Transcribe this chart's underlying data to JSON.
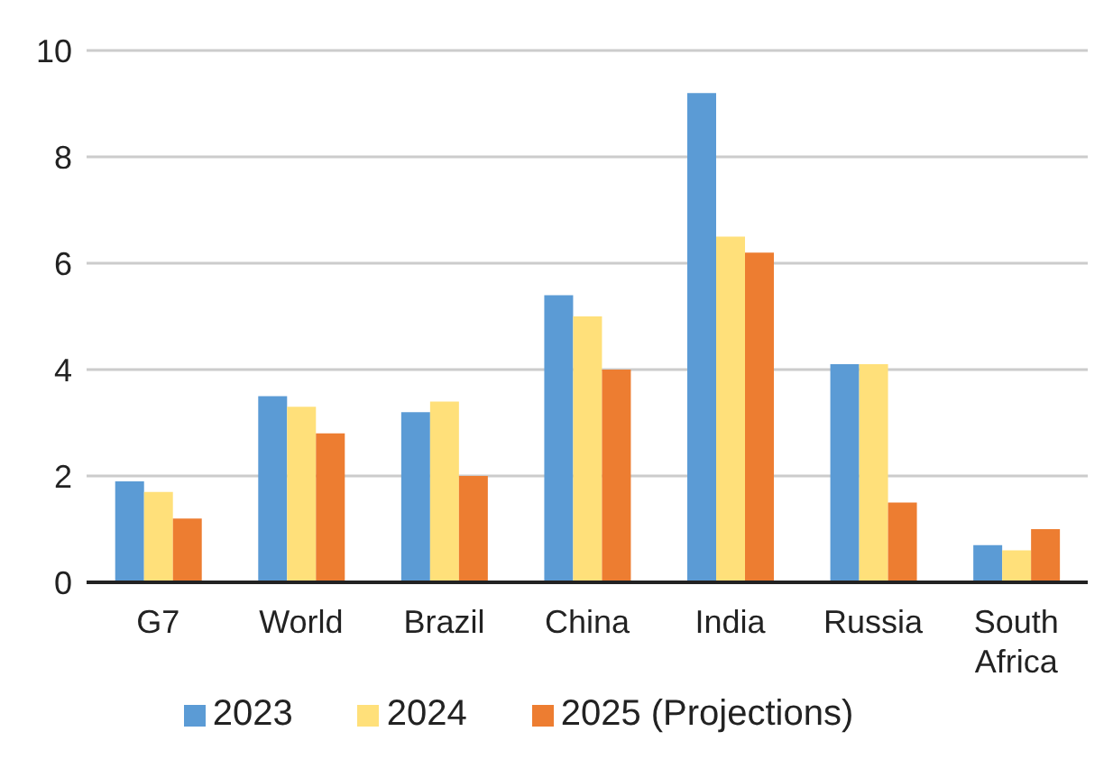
{
  "chart_data": {
    "type": "bar",
    "categories": [
      "G7",
      "World",
      "Brazil",
      "China",
      "India",
      "Russia",
      "South Africa"
    ],
    "series": [
      {
        "name": "2023",
        "color": "#5b9bd5",
        "values": [
          1.9,
          3.5,
          3.2,
          5.4,
          9.2,
          4.1,
          0.7
        ]
      },
      {
        "name": "2024",
        "color": "#ffe07a",
        "values": [
          1.7,
          3.3,
          3.4,
          5.0,
          6.5,
          4.1,
          0.6
        ]
      },
      {
        "name": "2025 (Projections)",
        "color": "#ed7d31",
        "values": [
          1.2,
          2.8,
          2.0,
          4.0,
          6.2,
          1.5,
          1.0
        ]
      }
    ],
    "ylim": [
      0,
      10
    ],
    "yticks": [
      0,
      2,
      4,
      6,
      8,
      10
    ],
    "grid": "y",
    "legend": "bottom"
  }
}
